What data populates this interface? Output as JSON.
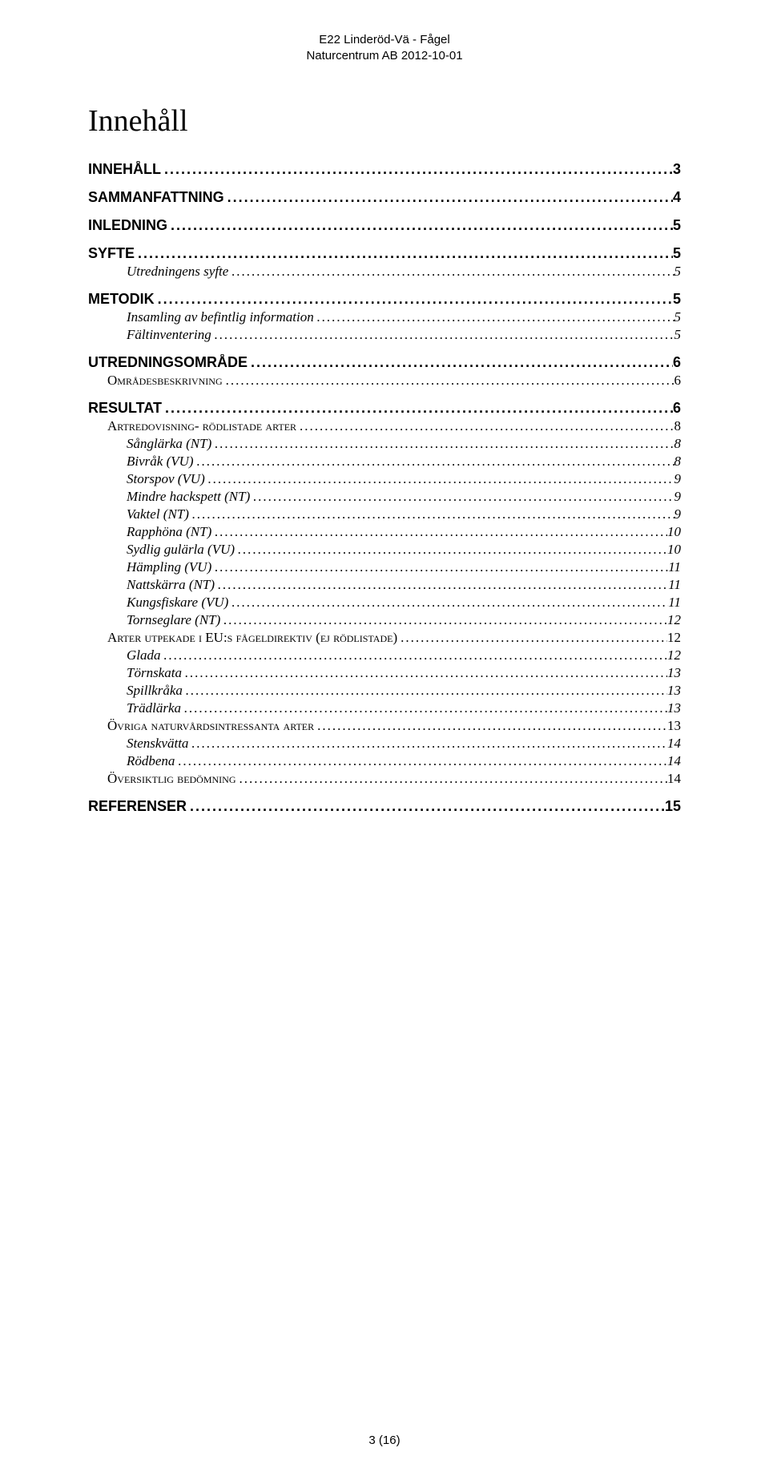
{
  "header": {
    "line1": "E22 Linderöd-Vä - Fågel",
    "line2": "Naturcentrum AB 2012-10-01"
  },
  "title": "Innehåll",
  "toc": [
    {
      "label": "INNEHÅLL",
      "page": "3",
      "level": 1
    },
    {
      "label": "SAMMANFATTNING",
      "page": "4",
      "level": 1
    },
    {
      "label": "INLEDNING",
      "page": "5",
      "level": 1
    },
    {
      "label": "SYFTE",
      "page": "5",
      "level": 1
    },
    {
      "label": "Utredningens syfte",
      "page": "5",
      "level": 3
    },
    {
      "label": "METODIK",
      "page": "5",
      "level": 1
    },
    {
      "label": "Insamling av befintlig information",
      "page": "5",
      "level": 3
    },
    {
      "label": "Fältinventering",
      "page": "5",
      "level": 3
    },
    {
      "label": "UTREDNINGSOMRÅDE",
      "page": "6",
      "level": 1
    },
    {
      "label": "Områdesbeskrivning",
      "page": "6",
      "level": 2
    },
    {
      "label": "RESULTAT",
      "page": "6",
      "level": 1
    },
    {
      "label": "Artredovisning- rödlistade arter",
      "page": "8",
      "level": 2
    },
    {
      "label": "Sånglärka (NT)",
      "page": "8",
      "level": 3
    },
    {
      "label": "Bivråk (VU)",
      "page": "8",
      "level": 3
    },
    {
      "label": "Storspov (VU)",
      "page": "9",
      "level": 3
    },
    {
      "label": "Mindre hackspett (NT)",
      "page": "9",
      "level": 3
    },
    {
      "label": "Vaktel (NT)",
      "page": "9",
      "level": 3
    },
    {
      "label": "Rapphöna (NT)",
      "page": "10",
      "level": 3
    },
    {
      "label": "Sydlig gulärla (VU)",
      "page": "10",
      "level": 3
    },
    {
      "label": "Hämpling (VU)",
      "page": "11",
      "level": 3
    },
    {
      "label": "Nattskärra (NT)",
      "page": "11",
      "level": 3
    },
    {
      "label": "Kungsfiskare (VU)",
      "page": "11",
      "level": 3
    },
    {
      "label": "Tornseglare (NT)",
      "page": "12",
      "level": 3
    },
    {
      "label": "Arter utpekade i EU:s fågeldirektiv (ej rödlistade)",
      "page": "12",
      "level": 2
    },
    {
      "label": "Glada",
      "page": "12",
      "level": 3
    },
    {
      "label": "Törnskata",
      "page": "13",
      "level": 3
    },
    {
      "label": "Spillkråka",
      "page": "13",
      "level": 3
    },
    {
      "label": "Trädlärka",
      "page": "13",
      "level": 3
    },
    {
      "label": "Övriga naturvårdsintressanta arter",
      "page": "13",
      "level": 2
    },
    {
      "label": "Stenskvätta",
      "page": "14",
      "level": 3
    },
    {
      "label": "Rödbena",
      "page": "14",
      "level": 3
    },
    {
      "label": "Översiktlig bedömning",
      "page": "14",
      "level": 2
    },
    {
      "label": "REFERENSER",
      "page": "15",
      "level": 1
    }
  ],
  "footer": "3 (16)"
}
